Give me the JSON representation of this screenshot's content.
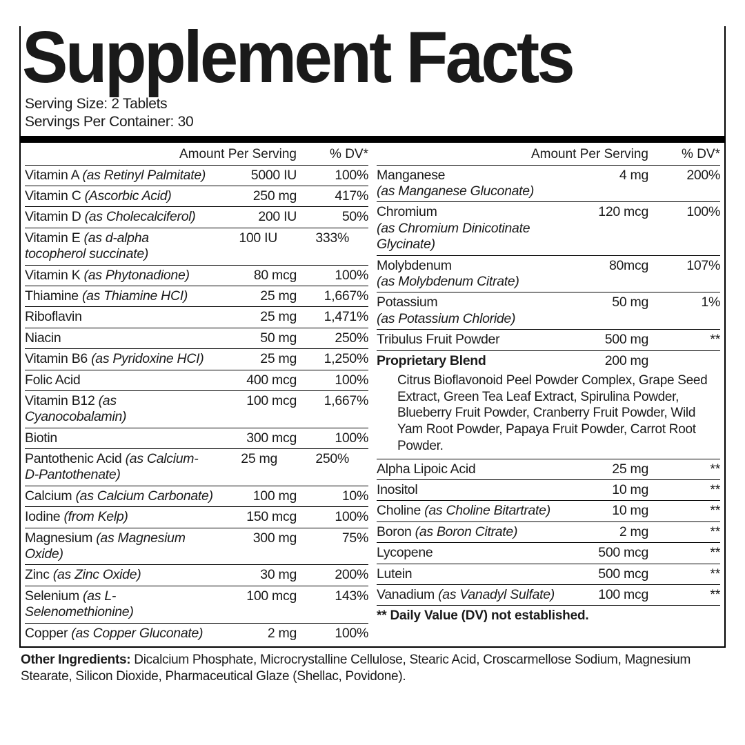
{
  "title": "Supplement Facts",
  "serving_size_label": "Serving Size:",
  "serving_size_value": "2 Tablets",
  "servings_per_label": "Servings Per Container:",
  "servings_per_value": "30",
  "header_amount": "Amount Per Serving",
  "header_dv": "% DV*",
  "left": [
    {
      "name": "Vitamin A",
      "sub": "(as Retinyl Palmitate)",
      "amt": "5000 IU",
      "dv": "100%"
    },
    {
      "name": "Vitamin C",
      "sub": "(Ascorbic Acid)",
      "amt": "250 mg",
      "dv": "417%"
    },
    {
      "name": "Vitamin D",
      "sub": "(as Cholecalciferol)",
      "amt": "200 IU",
      "dv": "50%"
    },
    {
      "name": "Vitamin E",
      "sub": "(as d-alpha tocopherol succinate)",
      "amt": "100 IU",
      "dv": "333%",
      "wrap": true
    },
    {
      "name": "Vitamin K",
      "sub": "(as Phytonadione)",
      "amt": "80 mcg",
      "dv": "100%"
    },
    {
      "name": "Thiamine",
      "sub": "(as Thiamine HCI)",
      "amt": "25 mg",
      "dv": "1,667%"
    },
    {
      "name": "Riboflavin",
      "sub": "",
      "amt": "25 mg",
      "dv": "1,471%"
    },
    {
      "name": "Niacin",
      "sub": "",
      "amt": "50 mg",
      "dv": "250%"
    },
    {
      "name": "Vitamin B6",
      "sub": "(as Pyridoxine HCI)",
      "amt": "25 mg",
      "dv": "1,250%"
    },
    {
      "name": "Folic Acid",
      "sub": "",
      "amt": "400 mcg",
      "dv": "100%"
    },
    {
      "name": "Vitamin B12",
      "sub": "(as Cyanocobalamin)",
      "amt": "100 mcg",
      "dv": "1,667%"
    },
    {
      "name": "Biotin",
      "sub": "",
      "amt": "300 mcg",
      "dv": "100%"
    },
    {
      "name": "Pantothenic Acid",
      "sub": "(as Calcium-D-Pantothenate)",
      "amt": "25 mg",
      "dv": "250%",
      "wrap": true
    },
    {
      "name": "Calcium",
      "sub": "(as Calcium Carbonate)",
      "amt": "100 mg",
      "dv": "10%"
    },
    {
      "name": "Iodine",
      "sub": "(from Kelp)",
      "amt": "150 mcg",
      "dv": "100%"
    },
    {
      "name": "Magnesium",
      "sub": "(as Magnesium Oxide)",
      "amt": "300 mg",
      "dv": "75%"
    },
    {
      "name": "Zinc",
      "sub": "(as Zinc Oxide)",
      "amt": "30 mg",
      "dv": "200%"
    },
    {
      "name": "Selenium",
      "sub": "(as L-Selenomethionine)",
      "amt": "100 mcg",
      "dv": "143%"
    },
    {
      "name": "Copper",
      "sub": "(as Copper Gluconate)",
      "amt": "2 mg",
      "dv": "100%",
      "last": true
    }
  ],
  "right_top": [
    {
      "name": "Manganese",
      "sub": "(as Manganese Gluconate)",
      "amt": "4 mg",
      "dv": "200%",
      "wrap": true,
      "below": true
    },
    {
      "name": "Chromium",
      "sub": "(as Chromium Dinicotinate Glycinate)",
      "amt": "120 mcg",
      "dv": "100%",
      "wrap": true,
      "below": true
    },
    {
      "name": "Molybdenum",
      "sub": "(as Molybdenum Citrate)",
      "amt": "80mcg",
      "dv": "107%",
      "wrap": true,
      "below": true
    },
    {
      "name": "Potassium",
      "sub": "(as Potassium Chloride)",
      "amt": "50 mg",
      "dv": "1%",
      "wrap": true,
      "below": true
    }
  ],
  "tribulus": {
    "name": "Tribulus Fruit Powder",
    "amt": "500 mg",
    "dv": "**"
  },
  "blend_label": "Proprietary Blend",
  "blend_amt": "200 mg",
  "blend_text": "Citrus Bioflavonoid Peel Powder Complex, Grape Seed Extract, Green Tea Leaf Extract, Spirulina Powder, Blueberry Fruit Powder, Cranberry Fruit Powder, Wild Yam Root Powder, Papaya Fruit Powder, Carrot Root Powder.",
  "right_bottom": [
    {
      "name": "Alpha Lipoic Acid",
      "sub": "",
      "amt": "25 mg",
      "dv": "**"
    },
    {
      "name": "Inositol",
      "sub": "",
      "amt": "10 mg",
      "dv": "**"
    },
    {
      "name": "Choline",
      "sub": "(as Choline Bitartrate)",
      "amt": "10 mg",
      "dv": "**"
    },
    {
      "name": "Boron",
      "sub": "(as Boron Citrate)",
      "amt": "2 mg",
      "dv": "**"
    },
    {
      "name": "Lycopene",
      "sub": "",
      "amt": "500 mcg",
      "dv": "**"
    },
    {
      "name": "Lutein",
      "sub": "",
      "amt": "500 mcg",
      "dv": "**"
    },
    {
      "name": "Vanadium",
      "sub": "(as Vanadyl Sulfate)",
      "amt": "100 mcg",
      "dv": "**"
    }
  ],
  "dv_note": "**  Daily Value (DV) not established.",
  "other_label": "Other Ingredients:",
  "other_text": " Dicalcium Phosphate, Microcrystalline Cellulose, Stearic Acid, Croscarmellose Sodium, Magnesium Stearate, Silicon Dioxide, Pharmaceutical Glaze (Shellac, Povidone)."
}
